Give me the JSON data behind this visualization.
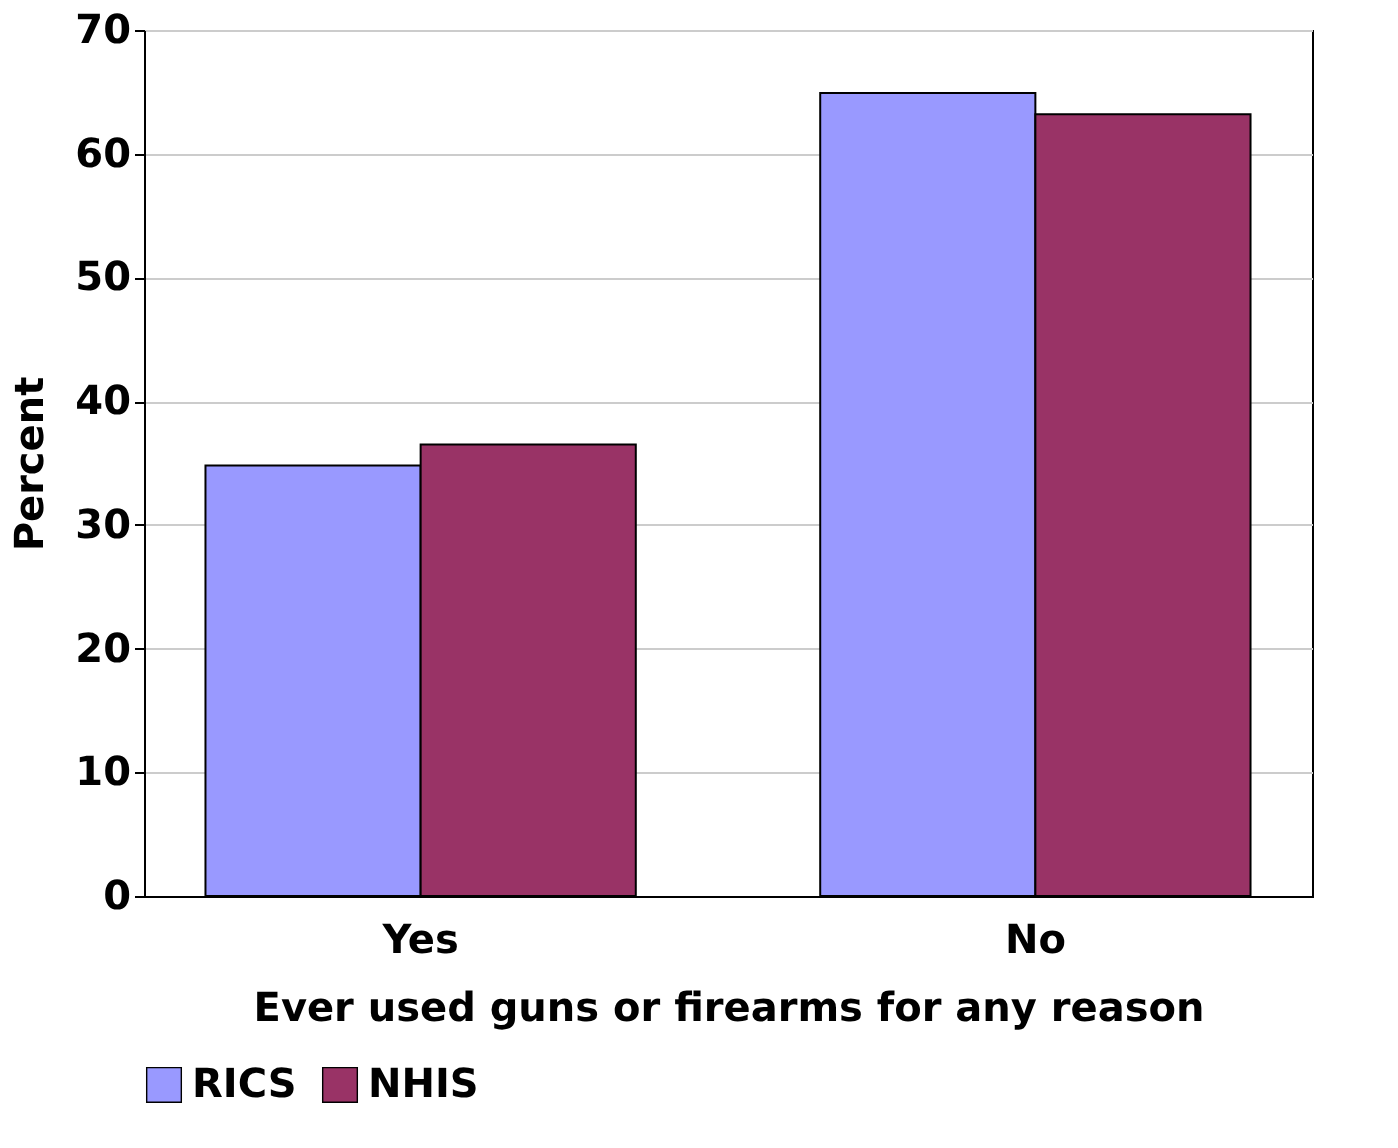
{
  "chart_data": {
    "type": "bar",
    "xlabel": "Ever used guns or firearms for any reason",
    "ylabel": "Percent",
    "categories": [
      "Yes",
      "No"
    ],
    "series": [
      {
        "name": "RICS",
        "color": "#9999ff",
        "values": [
          34.8,
          64.9
        ]
      },
      {
        "name": "NHIS",
        "color": "#993366",
        "values": [
          36.5,
          63.2
        ]
      }
    ],
    "ylim": [
      0,
      70
    ],
    "yticks": [
      0,
      10,
      20,
      30,
      40,
      50,
      60,
      70
    ],
    "grid": "y",
    "legend": "bottom"
  }
}
